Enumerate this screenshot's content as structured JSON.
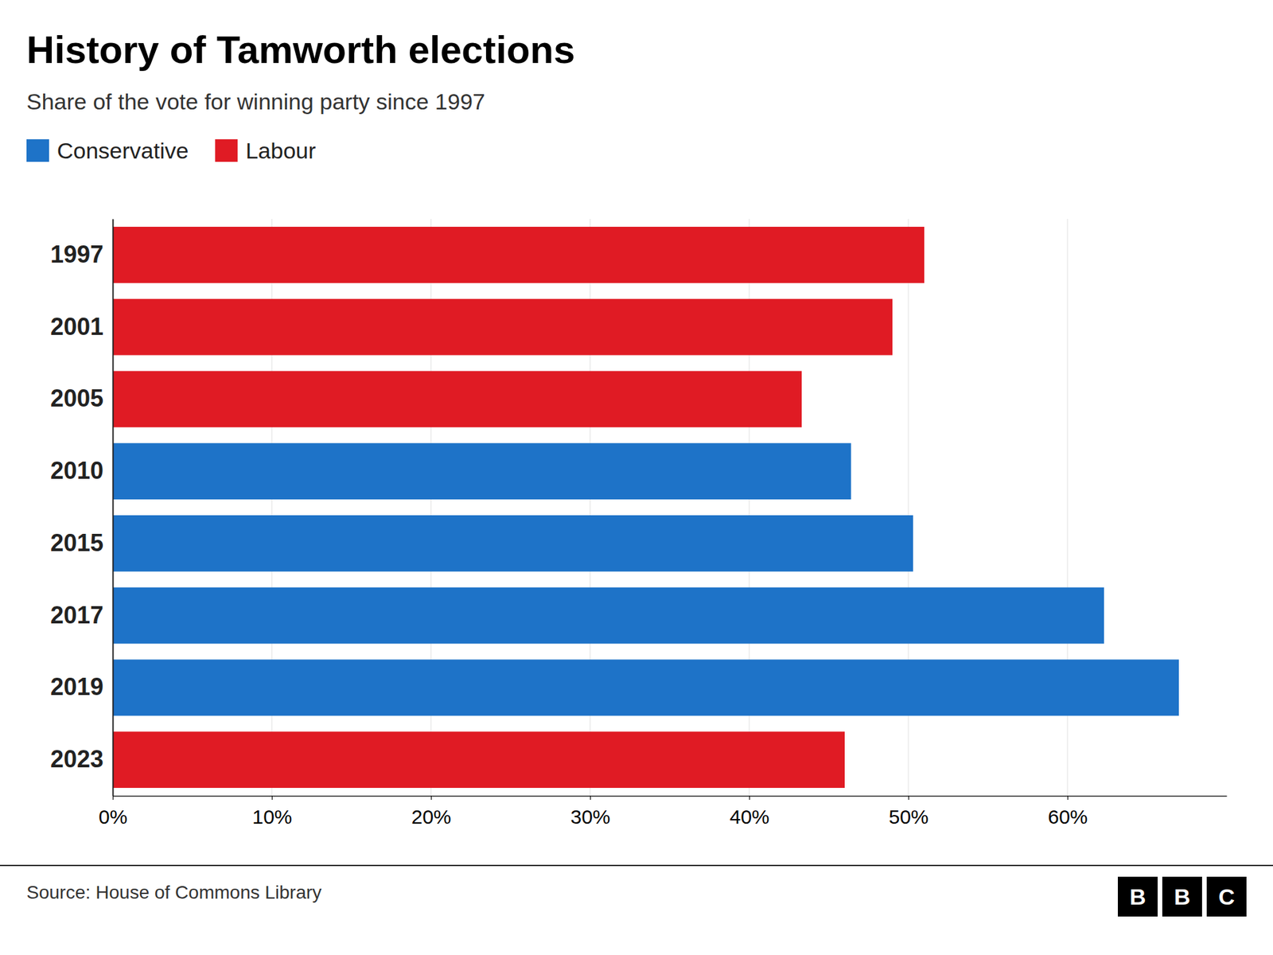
{
  "chart_data": {
    "type": "bar",
    "orientation": "horizontal",
    "title": "History of Tamworth elections",
    "subtitle": "Share of the vote for winning party since 1997",
    "source": "Source: House of Commons Library",
    "logo": [
      "B",
      "B",
      "C"
    ],
    "categories": [
      "1997",
      "2001",
      "2005",
      "2010",
      "2015",
      "2017",
      "2019",
      "2023"
    ],
    "series": [
      {
        "name": "Conservative",
        "color": "#1e73c8",
        "values": [
          null,
          null,
          null,
          46.4,
          50.3,
          62.3,
          67.0,
          null
        ]
      },
      {
        "name": "Labour",
        "color": "#e01b24",
        "values": [
          51.0,
          49.0,
          43.3,
          null,
          null,
          null,
          null,
          46.0
        ]
      }
    ],
    "xlim": [
      0,
      70
    ],
    "xticks": [
      {
        "value": 0,
        "label": "0%"
      },
      {
        "value": 10,
        "label": "10%"
      },
      {
        "value": 20,
        "label": "20%"
      },
      {
        "value": 30,
        "label": "30%"
      },
      {
        "value": 40,
        "label": "40%"
      },
      {
        "value": 50,
        "label": "50%"
      },
      {
        "value": 60,
        "label": "60%"
      }
    ],
    "grid": true,
    "legend": "upper left"
  }
}
